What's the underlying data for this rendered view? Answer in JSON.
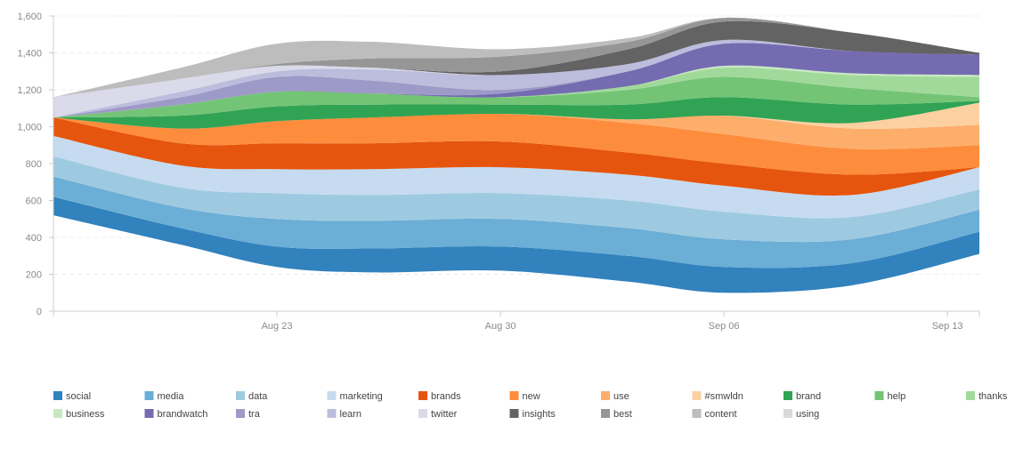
{
  "chart_data": {
    "type": "area",
    "stacked": true,
    "smooth": true,
    "x": [
      "2013-08-16",
      "2013-08-20",
      "2013-08-23",
      "2013-08-26",
      "2013-08-30",
      "2013-09-03",
      "2013-09-06",
      "2013-09-10",
      "2013-09-14"
    ],
    "x_ticks": [
      "Aug 23",
      "Aug 30",
      "Sep 06",
      "Sep 13"
    ],
    "x_tick_dates": [
      "2013-08-23",
      "2013-08-30",
      "2013-09-06",
      "2013-09-13"
    ],
    "xlim": [
      "2013-08-16",
      "2013-09-14"
    ],
    "y_ticks": [
      "0",
      "200",
      "400",
      "600",
      "800",
      "1,000",
      "1,200",
      "1,400",
      "1,600"
    ],
    "ylim": [
      0,
      1600
    ],
    "grid": "horizontal-dashed",
    "legend_position": "bottom",
    "baseline": [
      520,
      360,
      240,
      210,
      220,
      160,
      100,
      140,
      310
    ],
    "series": [
      {
        "name": "social",
        "color": "#3182bd",
        "values": [
          100,
          90,
          110,
          130,
          130,
          140,
          140,
          120,
          120
        ]
      },
      {
        "name": "media",
        "color": "#6baed6",
        "values": [
          110,
          110,
          150,
          150,
          150,
          150,
          150,
          130,
          120
        ]
      },
      {
        "name": "data",
        "color": "#9ecae1",
        "values": [
          110,
          110,
          140,
          140,
          140,
          150,
          150,
          120,
          110
        ]
      },
      {
        "name": "marketing",
        "color": "#c6dbef",
        "values": [
          110,
          120,
          130,
          140,
          140,
          140,
          140,
          120,
          120
        ]
      },
      {
        "name": "brands",
        "color": "#e6550d",
        "values": [
          100,
          120,
          140,
          140,
          140,
          120,
          120,
          110,
          0
        ]
      },
      {
        "name": "new",
        "color": "#fd8d3c",
        "values": [
          0,
          80,
          120,
          140,
          150,
          160,
          160,
          140,
          120
        ]
      },
      {
        "name": "use",
        "color": "#fdae6b",
        "values": [
          0,
          0,
          0,
          0,
          0,
          20,
          100,
          110,
          110
        ]
      },
      {
        "name": "#smwldn",
        "color": "#fdd0a2",
        "values": [
          0,
          0,
          0,
          0,
          0,
          0,
          0,
          30,
          120
        ]
      },
      {
        "name": "brand",
        "color": "#31a354",
        "values": [
          0,
          70,
          80,
          70,
          50,
          80,
          100,
          100,
          10
        ]
      },
      {
        "name": "help",
        "color": "#74c476",
        "values": [
          0,
          60,
          80,
          60,
          40,
          80,
          110,
          90,
          20
        ]
      },
      {
        "name": "thanks",
        "color": "#a1d99b",
        "values": [
          0,
          0,
          0,
          0,
          0,
          20,
          50,
          70,
          110
        ]
      },
      {
        "name": "business",
        "color": "#c7e9c0",
        "values": [
          0,
          0,
          0,
          0,
          0,
          0,
          10,
          10,
          10
        ]
      },
      {
        "name": "brandwatch",
        "color": "#756bb1",
        "values": [
          0,
          0,
          0,
          0,
          20,
          80,
          120,
          120,
          110
        ]
      },
      {
        "name": "tra",
        "color": "#9e9ac8",
        "values": [
          0,
          40,
          80,
          70,
          20,
          0,
          0,
          0,
          0
        ]
      },
      {
        "name": "learn",
        "color": "#bcbddc",
        "values": [
          0,
          30,
          30,
          60,
          80,
          40,
          20,
          0,
          0
        ]
      },
      {
        "name": "twitter",
        "color": "#dadaeb",
        "values": [
          110,
          70,
          30,
          10,
          0,
          0,
          0,
          0,
          0
        ]
      },
      {
        "name": "insights",
        "color": "#636363",
        "values": [
          0,
          0,
          0,
          0,
          20,
          80,
          100,
          100,
          10
        ]
      },
      {
        "name": "best",
        "color": "#969696",
        "values": [
          0,
          0,
          10,
          50,
          80,
          40,
          20,
          0,
          0
        ]
      },
      {
        "name": "content",
        "color": "#bdbdbd",
        "values": [
          0,
          60,
          110,
          90,
          40,
          20,
          0,
          0,
          0
        ]
      },
      {
        "name": "using",
        "color": "#d9d9d9",
        "values": [
          0,
          0,
          0,
          0,
          0,
          0,
          0,
          0,
          0
        ]
      }
    ]
  }
}
